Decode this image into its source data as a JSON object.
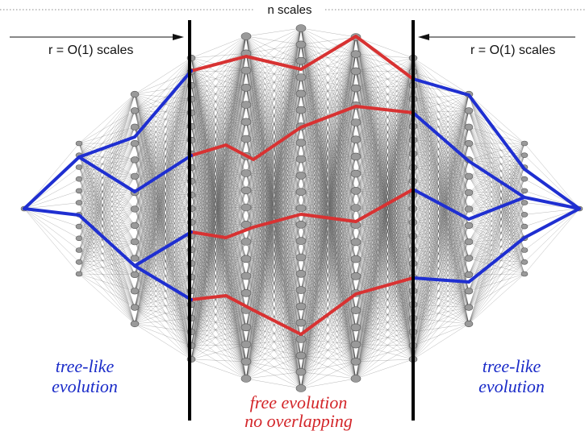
{
  "header": {
    "title": "n scales"
  },
  "left_region": {
    "label": "r = O(1) scales",
    "caption_line1": "tree-like",
    "caption_line2": "evolution"
  },
  "right_region": {
    "label": "r = O(1) scales",
    "caption_line1": "tree-like",
    "caption_line2": "evolution"
  },
  "center_region": {
    "caption_line1": "free evolution",
    "caption_line2": "no overlapping"
  },
  "colors": {
    "tree_paths": "#1f2fd1",
    "free_paths": "#d83232",
    "nodes": "#9a9a9a",
    "edges": "#444444",
    "barriers": "#000000"
  }
}
